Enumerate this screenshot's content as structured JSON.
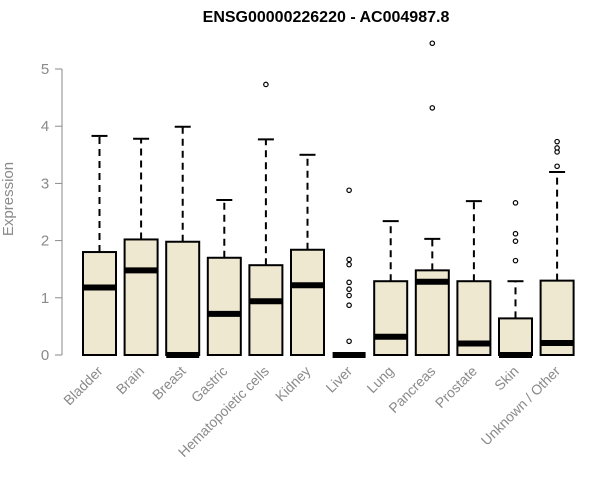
{
  "chart_data": {
    "type": "boxplot",
    "title": "ENSG00000226220 - AC004987.8",
    "ylabel": "Expression",
    "xlabel": "",
    "ylim": [
      0,
      5
    ],
    "yticks": [
      0,
      1,
      2,
      3,
      4,
      5
    ],
    "box_fill": "#efe8d0",
    "box_stroke": "#000000",
    "categories": [
      "Bladder",
      "Brain",
      "Breast",
      "Gastric",
      "Hematopoietic cells",
      "Kidney",
      "Liver",
      "Lung",
      "Pancreas",
      "Prostate",
      "Skin",
      "Unknown / Other"
    ],
    "boxes": [
      {
        "q1": 0,
        "median": 1.18,
        "q3": 1.8,
        "whisker_low": 0,
        "whisker_high": 3.83,
        "outliers": []
      },
      {
        "q1": 0,
        "median": 1.48,
        "q3": 2.02,
        "whisker_low": 0,
        "whisker_high": 3.78,
        "outliers": []
      },
      {
        "q1": 0,
        "median": 0,
        "q3": 1.98,
        "whisker_low": 0,
        "whisker_high": 3.99,
        "outliers": []
      },
      {
        "q1": 0,
        "median": 0.72,
        "q3": 1.7,
        "whisker_low": 0,
        "whisker_high": 2.71,
        "outliers": []
      },
      {
        "q1": 0,
        "median": 0.94,
        "q3": 1.57,
        "whisker_low": 0,
        "whisker_high": 3.77,
        "outliers": [
          4.73
        ]
      },
      {
        "q1": 0,
        "median": 1.22,
        "q3": 1.84,
        "whisker_low": 0,
        "whisker_high": 3.5,
        "outliers": []
      },
      {
        "q1": 0,
        "median": 0,
        "q3": 0,
        "whisker_low": 0,
        "whisker_high": 0,
        "outliers": [
          0.24,
          0.87,
          1.04,
          1.15,
          1.27,
          1.58,
          1.67,
          2.88
        ]
      },
      {
        "q1": 0,
        "median": 0.32,
        "q3": 1.29,
        "whisker_low": 0,
        "whisker_high": 2.34,
        "outliers": []
      },
      {
        "q1": 0,
        "median": 1.28,
        "q3": 1.48,
        "whisker_low": 0,
        "whisker_high": 2.03,
        "outliers": [
          4.32,
          5.45
        ]
      },
      {
        "q1": 0,
        "median": 0.2,
        "q3": 1.29,
        "whisker_low": 0,
        "whisker_high": 2.69,
        "outliers": []
      },
      {
        "q1": 0,
        "median": 0,
        "q3": 0.64,
        "whisker_low": 0,
        "whisker_high": 1.29,
        "outliers": [
          1.65,
          1.99,
          2.12,
          2.66
        ]
      },
      {
        "q1": 0,
        "median": 0.21,
        "q3": 1.3,
        "whisker_low": 0,
        "whisker_high": 3.2,
        "outliers": [
          3.3,
          3.55,
          3.62,
          3.73
        ]
      }
    ]
  }
}
